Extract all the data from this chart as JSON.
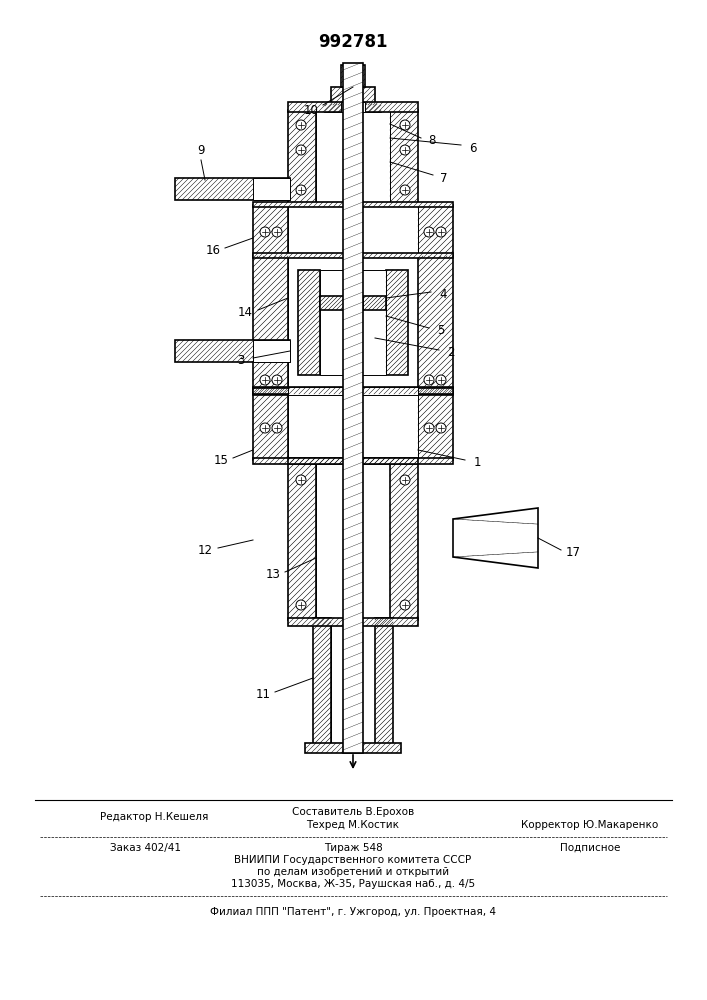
{
  "patent_number": "992781",
  "background_color": "#ffffff",
  "line_color": "#000000",
  "figure_size": [
    7.07,
    10.0
  ],
  "dpi": 100,
  "footer_line1_left": "Редактор Н.Кешеля",
  "footer_line1_center_top": "Составитель В.Ерохов",
  "footer_line1_center_bot": "Техред М.Костик",
  "footer_line1_right": "Корректор Ю.Макаренко",
  "footer_line2_left": "Заказ 402/41",
  "footer_line2_center": "Тираж 548",
  "footer_line2_right": "Подписное",
  "footer_line3": "ВНИИПИ Государственного комитета СССР",
  "footer_line4": "по делам изобретений и открытий",
  "footer_line5": "113035, Москва, Ж-35, Раушская наб., д. 4/5",
  "footer_line6": "Филиал ППП \"Патент\", г. Ужгород, ул. Проектная, 4"
}
